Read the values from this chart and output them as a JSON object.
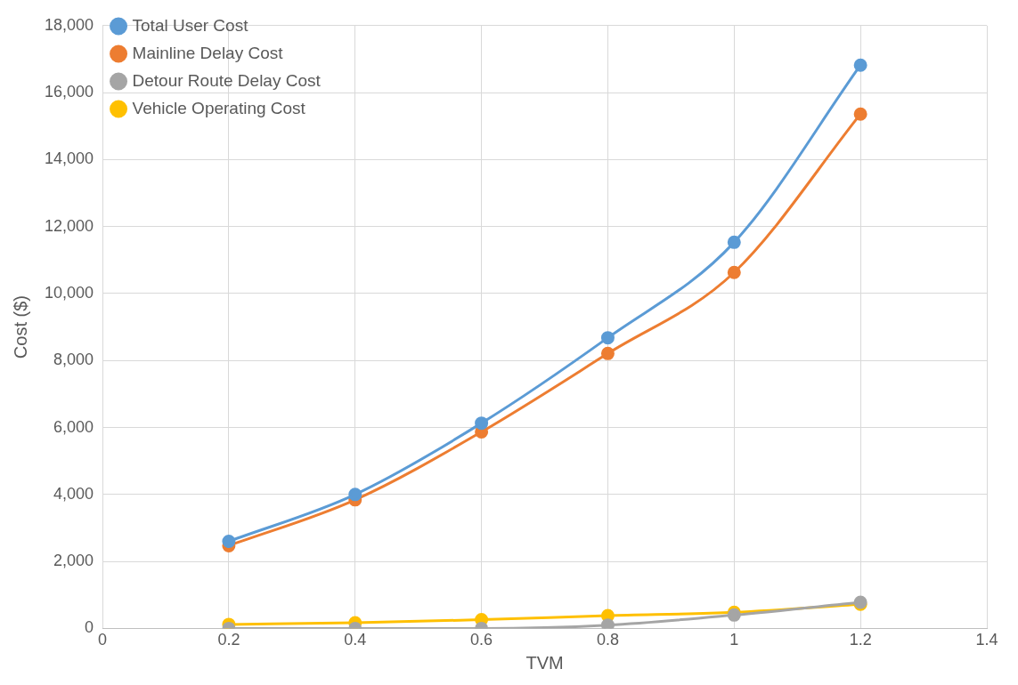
{
  "chart_data": {
    "type": "line",
    "xlabel": "TVM",
    "ylabel": "Cost ($)",
    "x": [
      0.2,
      0.4,
      0.6,
      0.8,
      1,
      1.2
    ],
    "xlim": [
      0,
      1.4
    ],
    "xticks": [
      0,
      0.2,
      0.4,
      0.6,
      0.8,
      1,
      1.2,
      1.4
    ],
    "ylim": [
      0,
      18000
    ],
    "yticks": [
      {
        "value": 0,
        "label": "0"
      },
      {
        "value": 2000,
        "label": "2,000"
      },
      {
        "value": 4000,
        "label": "4,000"
      },
      {
        "value": 6000,
        "label": "6,000"
      },
      {
        "value": 8000,
        "label": "8,000"
      },
      {
        "value": 10000,
        "label": "10,000"
      },
      {
        "value": 12000,
        "label": "12,000"
      },
      {
        "value": 14000,
        "label": "14,000"
      },
      {
        "value": 16000,
        "label": "16,000"
      },
      {
        "value": 18000,
        "label": "18,000"
      }
    ],
    "grid": true,
    "legend": "top left",
    "marker": "circle",
    "line_style": "solid",
    "series": [
      {
        "name": "Total User Cost",
        "color": "#5b9bd5",
        "values": [
          2600,
          4000,
          6130,
          8680,
          11530,
          16820
        ]
      },
      {
        "name": "Mainline Delay Cost",
        "color": "#ed7d31",
        "values": [
          2470,
          3840,
          5870,
          8210,
          10630,
          15360
        ]
      },
      {
        "name": "Detour Route Delay Cost",
        "color": "#a5a5a5",
        "values": [
          0,
          0,
          0,
          100,
          400,
          780
        ]
      },
      {
        "name": "Vehicle Operating Cost",
        "color": "#ffc000",
        "values": [
          120,
          170,
          260,
          380,
          480,
          720
        ]
      }
    ]
  }
}
